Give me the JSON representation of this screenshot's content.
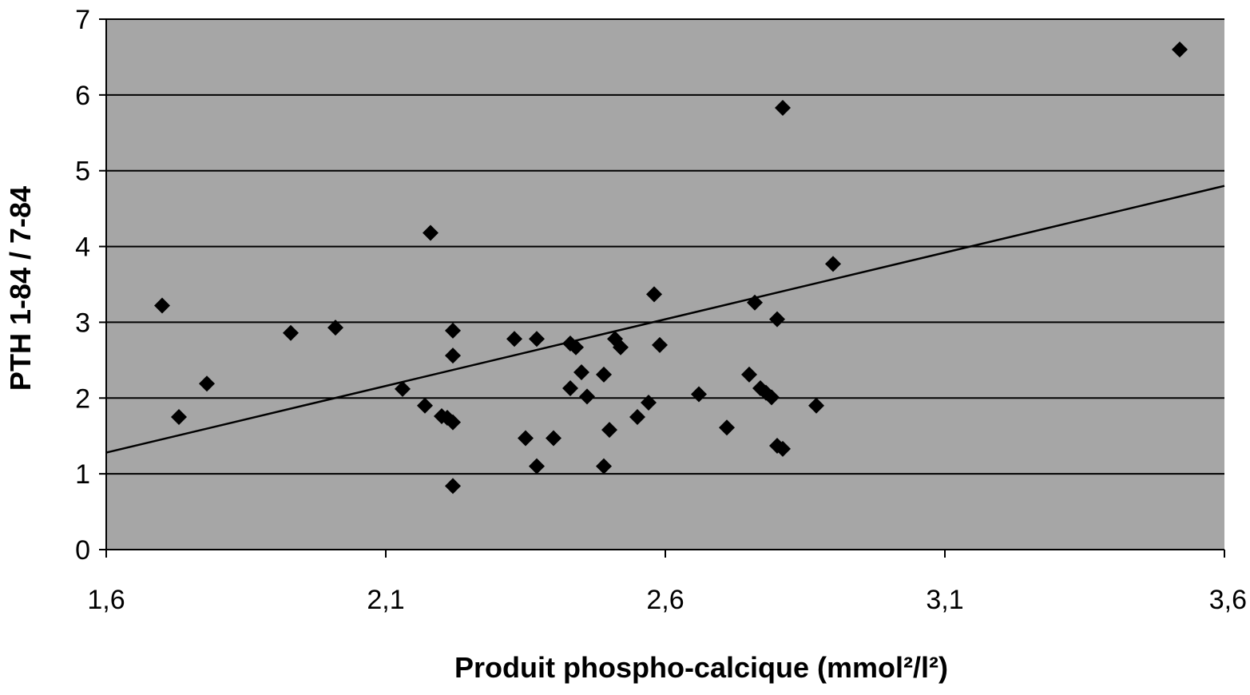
{
  "chart_data": {
    "type": "scatter",
    "title": "",
    "xlabel": "Produit phospho-calcique (mmol²/l²)",
    "ylabel": "PTH 1-84 / 7-84",
    "xlim": [
      1.6,
      3.6
    ],
    "ylim": [
      0,
      7
    ],
    "x_ticks": [
      1.6,
      2.1,
      2.6,
      3.1,
      3.6
    ],
    "x_tick_labels": [
      "1,6",
      "2,1",
      "2,6",
      "3,1",
      "3,6"
    ],
    "y_ticks": [
      0,
      1,
      2,
      3,
      4,
      5,
      6,
      7
    ],
    "y_tick_labels": [
      "0",
      "1",
      "2",
      "3",
      "4",
      "5",
      "6",
      "7"
    ],
    "grid": "horizontal major gridlines",
    "legend": "none",
    "plot_background": "#a6a6a6",
    "marker": "diamond",
    "marker_color": "#000000",
    "series": [
      {
        "points": [
          [
            1.7,
            3.22
          ],
          [
            1.73,
            1.75
          ],
          [
            1.78,
            2.19
          ],
          [
            1.93,
            2.86
          ],
          [
            2.01,
            2.93
          ],
          [
            2.13,
            2.12
          ],
          [
            2.17,
            1.9
          ],
          [
            2.18,
            4.18
          ],
          [
            2.2,
            1.76
          ],
          [
            2.21,
            1.74
          ],
          [
            2.22,
            2.89
          ],
          [
            2.22,
            2.56
          ],
          [
            2.22,
            1.68
          ],
          [
            2.22,
            0.84
          ],
          [
            2.33,
            2.78
          ],
          [
            2.35,
            1.47
          ],
          [
            2.37,
            2.78
          ],
          [
            2.37,
            1.1
          ],
          [
            2.4,
            1.47
          ],
          [
            2.43,
            2.72
          ],
          [
            2.43,
            2.13
          ],
          [
            2.44,
            2.67
          ],
          [
            2.45,
            2.34
          ],
          [
            2.46,
            2.02
          ],
          [
            2.49,
            2.31
          ],
          [
            2.49,
            1.1
          ],
          [
            2.5,
            1.58
          ],
          [
            2.51,
            2.78
          ],
          [
            2.52,
            2.67
          ],
          [
            2.55,
            1.75
          ],
          [
            2.57,
            1.94
          ],
          [
            2.58,
            3.37
          ],
          [
            2.59,
            2.7
          ],
          [
            2.66,
            2.05
          ],
          [
            2.71,
            1.61
          ],
          [
            2.75,
            2.31
          ],
          [
            2.76,
            3.26
          ],
          [
            2.77,
            2.13
          ],
          [
            2.78,
            2.07
          ],
          [
            2.79,
            2.01
          ],
          [
            2.8,
            3.04
          ],
          [
            2.8,
            1.37
          ],
          [
            2.81,
            1.33
          ],
          [
            2.81,
            5.83
          ],
          [
            2.87,
            1.9
          ],
          [
            2.9,
            3.77
          ],
          [
            3.52,
            6.6
          ]
        ]
      }
    ],
    "trendline": {
      "type": "linear",
      "x": [
        1.6,
        3.6
      ],
      "y": [
        1.28,
        4.8
      ],
      "color": "#000000"
    }
  }
}
